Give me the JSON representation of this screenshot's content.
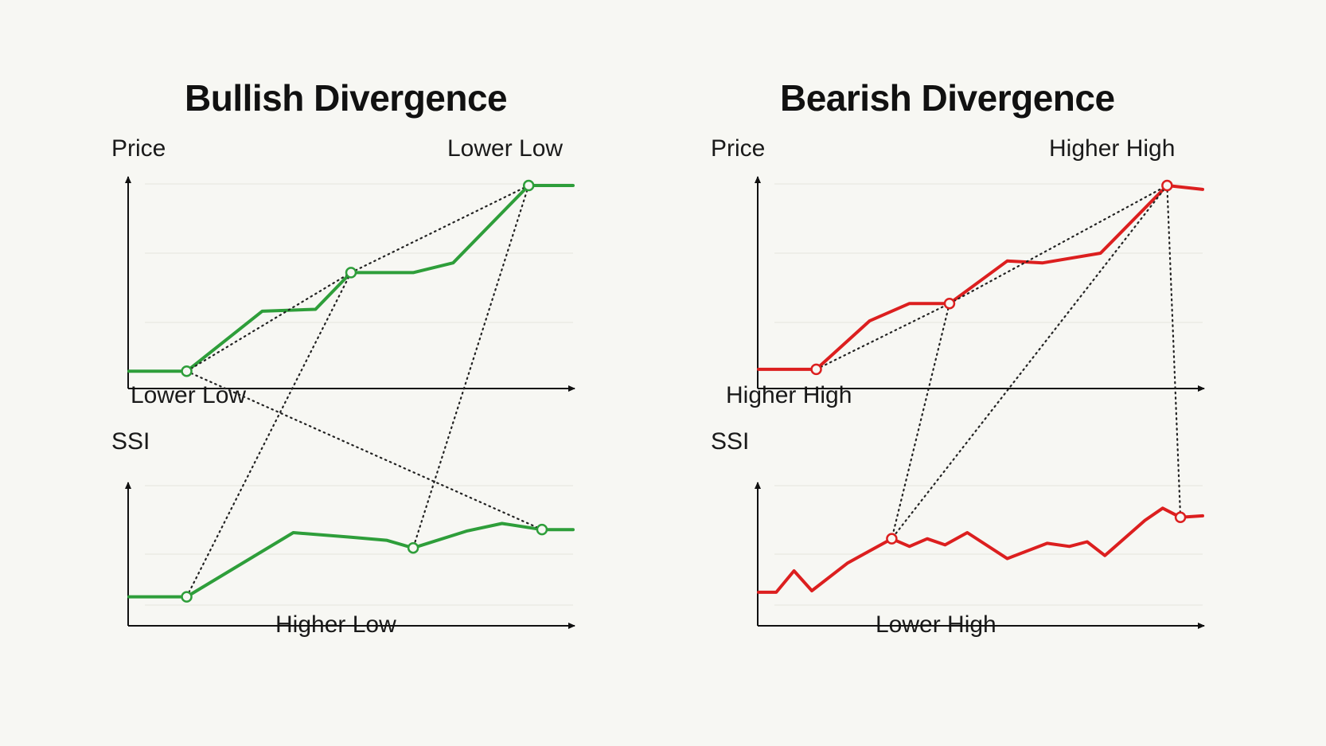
{
  "chart_data": [
    {
      "type": "line",
      "title": "Bullish Divergence",
      "color": "#2e9e3a",
      "price": {
        "axis_label": "Price",
        "top_annotation": "Lower Low",
        "bottom_annotation": "Lower Low",
        "ylim": [
          0,
          100
        ],
        "x": [
          0,
          13,
          30,
          42,
          50,
          64,
          73,
          90,
          100
        ],
        "y": [
          4,
          4,
          35,
          36,
          55,
          55,
          60,
          100,
          100
        ],
        "markers": [
          1,
          4,
          7
        ]
      },
      "ssi": {
        "axis_label": "SSI",
        "bottom_annotation": "Higher Low",
        "ylim": [
          0,
          100
        ],
        "x": [
          0,
          13,
          37,
          50,
          58,
          64,
          76,
          84,
          93,
          100
        ],
        "y": [
          8,
          8,
          50,
          47,
          45,
          40,
          51,
          56,
          52,
          52
        ],
        "markers": [
          1,
          5,
          8
        ]
      }
    },
    {
      "type": "line",
      "title": "Bearish Divergence",
      "color": "#dc1f1f",
      "price": {
        "axis_label": "Price",
        "top_annotation": "Higher High",
        "bottom_annotation": "Higher High",
        "ylim": [
          0,
          100
        ],
        "x": [
          0,
          13,
          25,
          34,
          43,
          56,
          64,
          77,
          92,
          100
        ],
        "y": [
          5,
          5,
          30,
          39,
          39,
          61,
          60,
          65,
          100,
          98
        ],
        "markers": [
          1,
          4,
          8
        ]
      },
      "ssi": {
        "axis_label": "SSI",
        "bottom_annotation": "Lower High",
        "ylim": [
          0,
          100
        ],
        "x": [
          0,
          4,
          8,
          12,
          20,
          25,
          30,
          34,
          38,
          42,
          47,
          56,
          65,
          70,
          74,
          78,
          87,
          91,
          95,
          100
        ],
        "y": [
          11,
          11,
          25,
          12,
          30,
          38,
          46,
          41,
          46,
          42,
          50,
          33,
          43,
          41,
          44,
          35,
          58,
          66,
          60,
          61
        ],
        "markers": [
          6,
          18
        ]
      }
    }
  ]
}
